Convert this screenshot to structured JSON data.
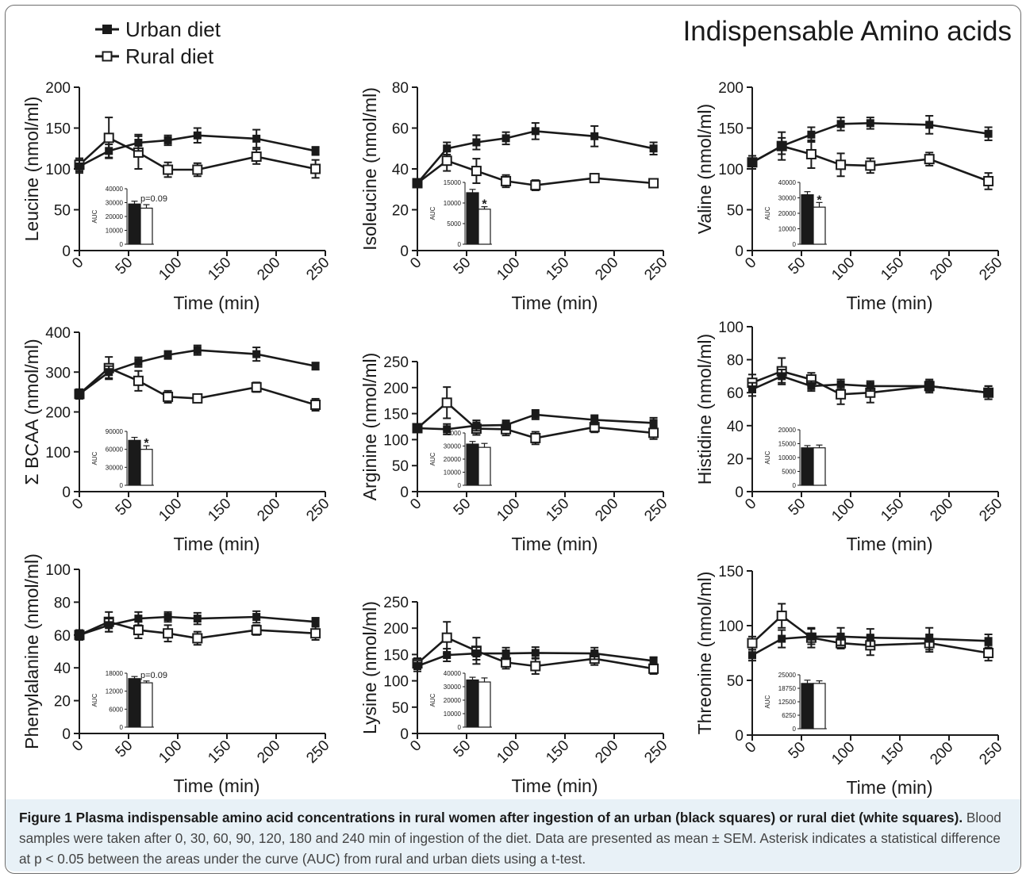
{
  "figure": {
    "title": "Indispensable Amino acids",
    "legend": [
      {
        "label": "Urban diet",
        "marker": "filled-square"
      },
      {
        "label": "Rural diet",
        "marker": "open-square"
      }
    ],
    "caption": {
      "label": "Figure 1",
      "bold_text": "Plasma indispensable amino acid concentrations in rural women after ingestion of an urban (black squares) or rural diet (white squares).",
      "text": "Blood samples were taken after 0, 30, 60, 90, 120, 180 and 240 min of ingestion of the diet. Data are presented as mean ± SEM. Asterisk indicates a statistical difference at p < 0.05 between the areas under the curve (AUC) from rural and urban diets using a t-test."
    },
    "colors": {
      "urban": "#1a1a1a",
      "rural": "#ffffff",
      "axis": "#1a1a1a",
      "caption_bg": "#e8f1f7"
    }
  },
  "chart_data": [
    {
      "type": "line",
      "xlabel": "Time (min)",
      "ylabel": "Leucine (nmol/ml)",
      "x": [
        0,
        30,
        60,
        90,
        120,
        180,
        240
      ],
      "xlim": [
        0,
        250
      ],
      "xticks": [
        0,
        50,
        100,
        150,
        200,
        250
      ],
      "ylim": [
        0,
        200
      ],
      "yticks": [
        0,
        50,
        100,
        150,
        200
      ],
      "series": [
        {
          "name": "Urban diet",
          "values": [
            103,
            122,
            132,
            135,
            141,
            137,
            122
          ],
          "errors": [
            8,
            8,
            10,
            6,
            9,
            11,
            5
          ]
        },
        {
          "name": "Rural diet",
          "values": [
            105,
            138,
            120,
            99,
            99,
            115,
            100
          ],
          "errors": [
            8,
            25,
            20,
            9,
            8,
            9,
            11
          ]
        }
      ],
      "inset": {
        "type": "bar",
        "ylabel": "AUC",
        "ylim": [
          0,
          40000
        ],
        "yticks": [
          0,
          10000,
          20000,
          30000,
          40000
        ],
        "values": [
          29000,
          26000
        ],
        "errors": [
          2000,
          2500
        ],
        "annotation": "p=0.09"
      }
    },
    {
      "type": "line",
      "xlabel": "Time (min)",
      "ylabel": "Isoleucine (nmol/ml)",
      "x": [
        0,
        30,
        60,
        90,
        120,
        180,
        240
      ],
      "xlim": [
        0,
        250
      ],
      "xticks": [
        0,
        50,
        100,
        150,
        200,
        250
      ],
      "ylim": [
        0,
        80
      ],
      "yticks": [
        0,
        20,
        40,
        60,
        80
      ],
      "series": [
        {
          "name": "Urban diet",
          "values": [
            33,
            50,
            53,
            55,
            58.5,
            56,
            50
          ],
          "errors": [
            2,
            3,
            3.5,
            3,
            4,
            5,
            3
          ]
        },
        {
          "name": "Rural diet",
          "values": [
            33,
            44,
            39,
            34,
            32,
            35.5,
            33
          ],
          "errors": [
            2,
            5,
            6,
            3,
            2.5,
            2,
            2
          ]
        }
      ],
      "inset": {
        "type": "bar",
        "ylabel": "AUC",
        "ylim": [
          0,
          15000
        ],
        "yticks": [
          0,
          5000,
          10000,
          15000
        ],
        "values": [
          12500,
          8500
        ],
        "errors": [
          800,
          600
        ],
        "annotation": "*"
      }
    },
    {
      "type": "line",
      "xlabel": "Time (min)",
      "ylabel": "Valine (nmol/ml)",
      "x": [
        0,
        30,
        60,
        90,
        120,
        180,
        240
      ],
      "xlim": [
        0,
        250
      ],
      "xticks": [
        0,
        50,
        100,
        150,
        200,
        250
      ],
      "ylim": [
        0,
        200
      ],
      "yticks": [
        0,
        50,
        100,
        150,
        200
      ],
      "series": [
        {
          "name": "Urban diet",
          "values": [
            108,
            128,
            142,
            155,
            156,
            154,
            143
          ],
          "errors": [
            8,
            10,
            9,
            8,
            7,
            11,
            8
          ]
        },
        {
          "name": "Rural diet",
          "values": [
            108,
            128,
            118,
            105,
            104,
            112,
            85
          ],
          "errors": [
            8,
            17,
            17,
            14,
            9,
            8,
            10
          ]
        }
      ],
      "inset": {
        "type": "bar",
        "ylabel": "AUC",
        "ylim": [
          0,
          40000
        ],
        "yticks": [
          0,
          10000,
          20000,
          30000,
          40000
        ],
        "values": [
          32000,
          24000
        ],
        "errors": [
          2000,
          3000
        ],
        "annotation": "*"
      }
    },
    {
      "type": "line",
      "xlabel": "Time (min)",
      "ylabel": "Σ BCAA (nmol/ml)",
      "x": [
        0,
        30,
        60,
        90,
        120,
        180,
        240
      ],
      "xlim": [
        0,
        250
      ],
      "xticks": [
        0,
        50,
        100,
        150,
        200,
        250
      ],
      "ylim": [
        0,
        400
      ],
      "yticks": [
        0,
        100,
        200,
        300,
        400
      ],
      "series": [
        {
          "name": "Urban diet",
          "values": [
            245,
            300,
            325,
            343,
            355,
            345,
            315
          ],
          "errors": [
            12,
            15,
            12,
            10,
            12,
            17,
            9
          ]
        },
        {
          "name": "Rural diet",
          "values": [
            245,
            310,
            278,
            238,
            234,
            262,
            218
          ],
          "errors": [
            12,
            28,
            25,
            15,
            10,
            12,
            15
          ]
        }
      ],
      "inset": {
        "type": "bar",
        "ylabel": "AUC",
        "ylim": [
          0,
          90000
        ],
        "yticks": [
          0,
          30000,
          60000,
          90000
        ],
        "values": [
          75000,
          60000
        ],
        "errors": [
          5000,
          6000
        ],
        "annotation": "*"
      }
    },
    {
      "type": "line",
      "xlabel": "Time (min)",
      "ylabel": "Arginine (nmol/ml)",
      "x": [
        0,
        30,
        60,
        90,
        120,
        180,
        240
      ],
      "xlim": [
        0,
        250
      ],
      "xticks": [
        0,
        50,
        100,
        150,
        200,
        250
      ],
      "ylim": [
        0,
        250
      ],
      "yticks": [
        0,
        50,
        100,
        150,
        200,
        250
      ],
      "series": [
        {
          "name": "Urban diet",
          "values": [
            122,
            120,
            127,
            128,
            148,
            138,
            132
          ],
          "errors": [
            8,
            10,
            10,
            9,
            9,
            9,
            10
          ]
        },
        {
          "name": "Rural diet",
          "values": [
            122,
            171,
            121,
            120,
            103,
            124,
            113
          ],
          "errors": [
            8,
            30,
            12,
            12,
            12,
            10,
            12
          ]
        }
      ],
      "inset": {
        "type": "bar",
        "ylabel": "AUC",
        "ylim": [
          0,
          40000
        ],
        "yticks": [
          0,
          10000,
          20000,
          30000,
          40000
        ],
        "values": [
          31500,
          29000
        ],
        "errors": [
          2000,
          3000
        ],
        "annotation": ""
      }
    },
    {
      "type": "line",
      "xlabel": "Time (min)",
      "ylabel": "Histidine (nmol/ml)",
      "x": [
        0,
        30,
        60,
        90,
        120,
        180,
        240
      ],
      "xlim": [
        0,
        250
      ],
      "xticks": [
        0,
        50,
        100,
        150,
        200,
        250
      ],
      "ylim": [
        0,
        100
      ],
      "yticks": [
        0,
        20,
        40,
        60,
        80,
        100
      ],
      "series": [
        {
          "name": "Urban diet",
          "values": [
            62,
            70,
            64,
            65,
            64,
            64,
            60
          ],
          "errors": [
            4,
            4,
            3,
            3,
            3,
            3,
            4
          ]
        },
        {
          "name": "Rural diet",
          "values": [
            66,
            73,
            68,
            59,
            60,
            64,
            60
          ],
          "errors": [
            5,
            8,
            4,
            6,
            6,
            4,
            4
          ]
        }
      ],
      "inset": {
        "type": "bar",
        "ylabel": "AUC",
        "ylim": [
          0,
          20000
        ],
        "yticks": [
          0,
          5000,
          10000,
          15000,
          20000
        ],
        "values": [
          13500,
          13500
        ],
        "errors": [
          800,
          1000
        ],
        "annotation": ""
      }
    },
    {
      "type": "line",
      "xlabel": "Time (min)",
      "ylabel": "Phenylalanine (nmol/ml)",
      "x": [
        0,
        30,
        60,
        90,
        120,
        180,
        240
      ],
      "xlim": [
        0,
        250
      ],
      "xticks": [
        0,
        50,
        100,
        150,
        200,
        250
      ],
      "ylim": [
        0,
        100
      ],
      "yticks": [
        0,
        20,
        40,
        60,
        80,
        100
      ],
      "series": [
        {
          "name": "Urban diet",
          "values": [
            60,
            66,
            70,
            71,
            70,
            71,
            68
          ],
          "errors": [
            3,
            4,
            4,
            3,
            3.5,
            3.5,
            2.5
          ]
        },
        {
          "name": "Rural diet",
          "values": [
            60,
            68,
            63,
            61,
            58,
            63,
            61
          ],
          "errors": [
            3,
            6,
            5,
            5,
            4,
            3,
            4
          ]
        }
      ],
      "inset": {
        "type": "bar",
        "ylabel": "AUC",
        "ylim": [
          0,
          18000
        ],
        "yticks": [
          0,
          6000,
          12000,
          18000
        ],
        "values": [
          16200,
          14800
        ],
        "errors": [
          700,
          600
        ],
        "annotation": "p=0.09"
      }
    },
    {
      "type": "line",
      "xlabel": "Time (min)",
      "ylabel": "Lysine (nmol/ml)",
      "x": [
        0,
        30,
        60,
        90,
        120,
        180,
        240
      ],
      "xlim": [
        0,
        250
      ],
      "xticks": [
        0,
        50,
        100,
        150,
        200,
        250
      ],
      "ylim": [
        0,
        250
      ],
      "yticks": [
        0,
        50,
        100,
        150,
        200,
        250
      ],
      "series": [
        {
          "name": "Urban diet",
          "values": [
            128,
            149,
            152,
            152,
            153,
            152,
            138
          ],
          "errors": [
            10,
            12,
            12,
            11,
            11,
            11,
            7
          ]
        },
        {
          "name": "Rural diet",
          "values": [
            133,
            182,
            157,
            135,
            128,
            142,
            123
          ],
          "errors": [
            10,
            30,
            25,
            12,
            15,
            12,
            10
          ]
        }
      ],
      "inset": {
        "type": "bar",
        "ylabel": "AUC",
        "ylim": [
          0,
          40000
        ],
        "yticks": [
          0,
          10000,
          20000,
          30000,
          40000
        ],
        "values": [
          35000,
          33500
        ],
        "errors": [
          2000,
          3000
        ],
        "annotation": ""
      }
    },
    {
      "type": "line",
      "xlabel": "Time (min)",
      "ylabel": "Threonine (nmol/ml)",
      "x": [
        0,
        30,
        60,
        90,
        120,
        180,
        240
      ],
      "xlim": [
        0,
        250
      ],
      "xticks": [
        0,
        50,
        100,
        150,
        200,
        250
      ],
      "ylim": [
        0,
        150
      ],
      "yticks": [
        0,
        50,
        100,
        150
      ],
      "series": [
        {
          "name": "Urban diet",
          "values": [
            73,
            88,
            90,
            90,
            89,
            88,
            86
          ],
          "errors": [
            5,
            8,
            7,
            8,
            8,
            10,
            6
          ]
        },
        {
          "name": "Rural diet",
          "values": [
            84,
            109,
            89,
            84,
            82,
            84,
            75
          ],
          "errors": [
            6,
            11,
            9,
            5,
            9,
            8,
            7
          ]
        }
      ],
      "inset": {
        "type": "bar",
        "ylabel": "AUC",
        "ylim": [
          0,
          25000
        ],
        "yticks": [
          0,
          6250,
          12500,
          18750,
          25000
        ],
        "values": [
          21000,
          21000
        ],
        "errors": [
          1500,
          1200
        ],
        "annotation": ""
      }
    }
  ]
}
